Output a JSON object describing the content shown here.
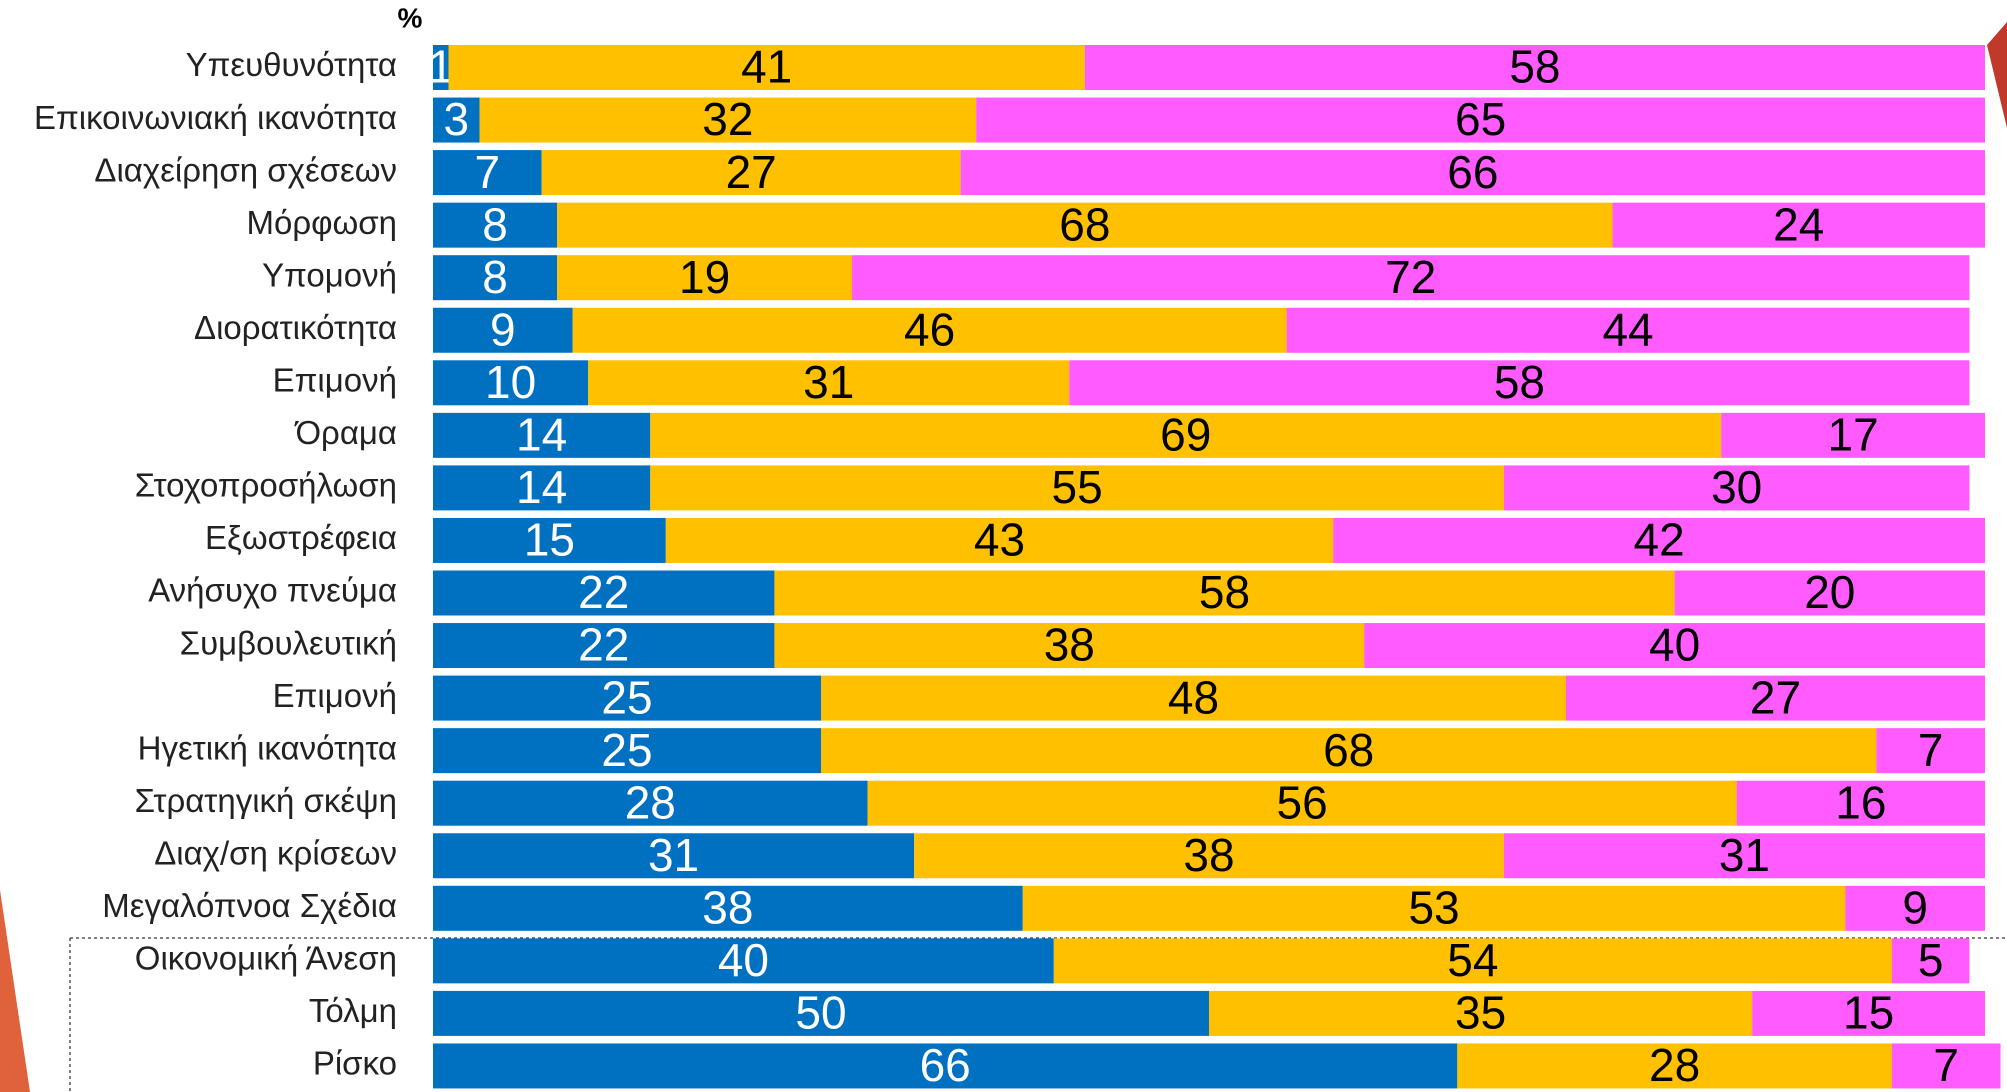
{
  "chart_data": {
    "type": "stacked-bar-horizontal",
    "unit_label": "%",
    "categories": [
      "Υπευθυνότητα",
      "Επικοινωνιακή ικανότητα",
      "Διαχείρηση σχέσεων",
      "Μόρφωση",
      "Υπομονή",
      "Διορατικότητα",
      "Επιμονή",
      "Όραμα",
      "Στοχοπροσήλωση",
      "Εξωστρέφεια",
      "Ανήσυχο πνεύμα",
      "Συμβουλευτική",
      "Επιμονή",
      "Ηγετική ικανότητα",
      "Στρατηγική σκέψη",
      "Διαχ/ση κρίσεων",
      "Μεγαλόπνοα Σχέδια",
      "Οικονομική Άνεση",
      "Τόλμη",
      "Ρίσκο"
    ],
    "series": [
      {
        "color": "#0070c0",
        "text_color": "#ffffff",
        "values": [
          1,
          3,
          7,
          8,
          8,
          9,
          10,
          14,
          14,
          15,
          22,
          22,
          25,
          25,
          28,
          31,
          38,
          40,
          50,
          66
        ]
      },
      {
        "color": "#ffc000",
        "text_color": "#000000",
        "values": [
          41,
          32,
          27,
          68,
          19,
          46,
          31,
          69,
          55,
          43,
          58,
          38,
          48,
          68,
          56,
          38,
          53,
          54,
          35,
          28
        ]
      },
      {
        "color": "#ff5bff",
        "text_color": "#000000",
        "values": [
          58,
          65,
          66,
          24,
          72,
          44,
          58,
          17,
          30,
          42,
          20,
          40,
          27,
          7,
          16,
          31,
          9,
          5,
          15,
          7
        ]
      }
    ],
    "xlim": [
      0,
      100
    ]
  }
}
